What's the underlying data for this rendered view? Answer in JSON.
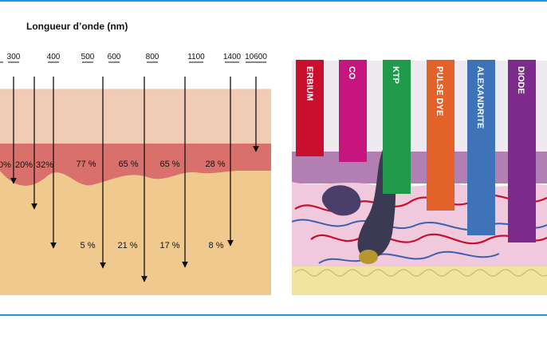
{
  "colors": {
    "rule": "#1a9ad9",
    "epidermis": "#f0ccb4",
    "dermis_band": "#d9706c",
    "dermis": "#f0c98e",
    "hypodermis": "#f6dfb0",
    "arrow": "#111111"
  },
  "diagram_left": {
    "title": "Longueur d’onde (nm)",
    "wavelengths": [
      "300",
      "400",
      "500",
      "600",
      "800",
      "1100",
      "1400",
      "10600"
    ],
    "upper_percentages": [
      "0%",
      "20%",
      "32%",
      "77 %",
      "65 %",
      "65 %",
      "28 %"
    ],
    "lower_percentages": [
      "5 %",
      "21 %",
      "17 %",
      "8 %"
    ]
  },
  "diagram_right": {
    "lasers": [
      {
        "label": "ERBIUM",
        "color": "#c8102e"
      },
      {
        "label": "CO",
        "color": "#c7157f"
      },
      {
        "label": "KTP",
        "color": "#1f9a4a"
      },
      {
        "label": "PULSE DYE",
        "color": "#e2622a"
      },
      {
        "label": "ALEXANDRITE",
        "color": "#3f73b8"
      },
      {
        "label": "DIODE",
        "color": "#7d2a8c"
      }
    ]
  }
}
